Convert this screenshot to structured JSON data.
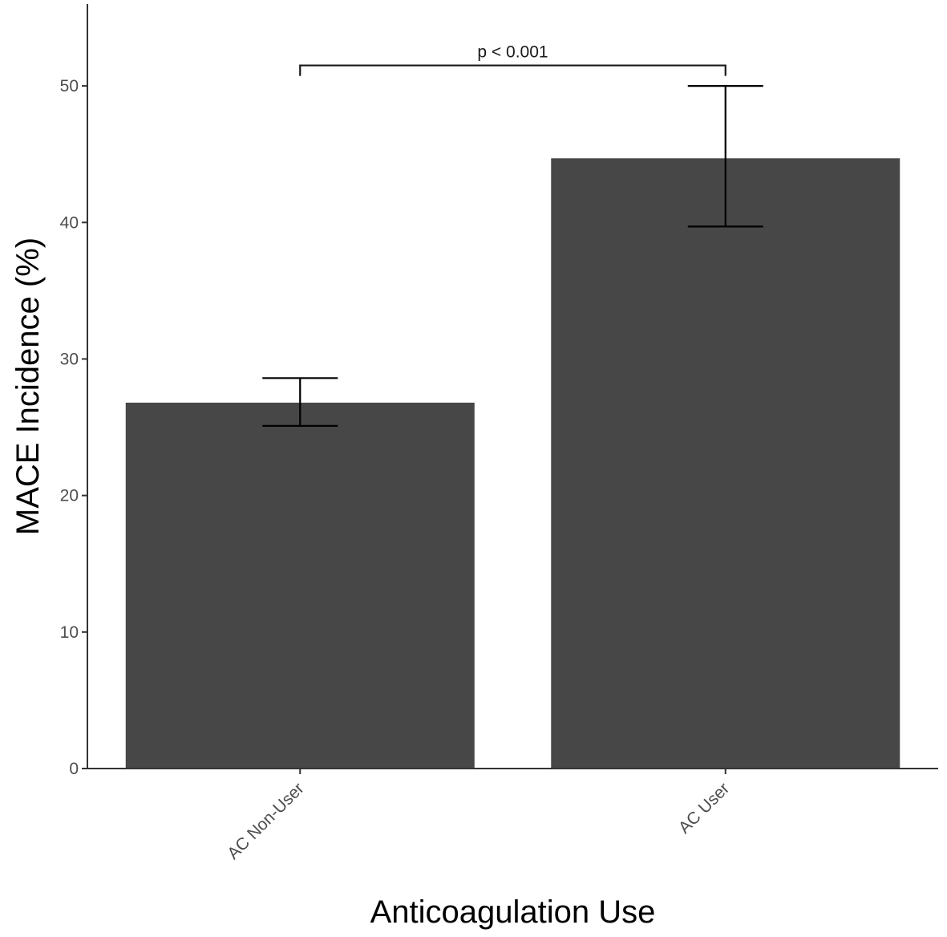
{
  "chart_data": {
    "type": "bar",
    "categories": [
      "AC Non-User",
      "AC User"
    ],
    "values": [
      26.8,
      44.7
    ],
    "error_bars": [
      {
        "lower": 25.1,
        "upper": 28.6
      },
      {
        "lower": 39.7,
        "upper": 50.0
      }
    ],
    "xlabel": "Anticoagulation Use",
    "ylabel": "MACE Incidence (%)",
    "ylim": [
      0,
      56
    ],
    "yticks": [
      0,
      10,
      20,
      30,
      40,
      50
    ],
    "annotation": {
      "text": "p < 0.001",
      "between": [
        "AC Non-User",
        "AC User"
      ],
      "y": 51.5
    },
    "grid": false,
    "legend": "none",
    "colors": {
      "bar": "#474747",
      "axis": "#333333",
      "error_bar": "#000000"
    }
  }
}
